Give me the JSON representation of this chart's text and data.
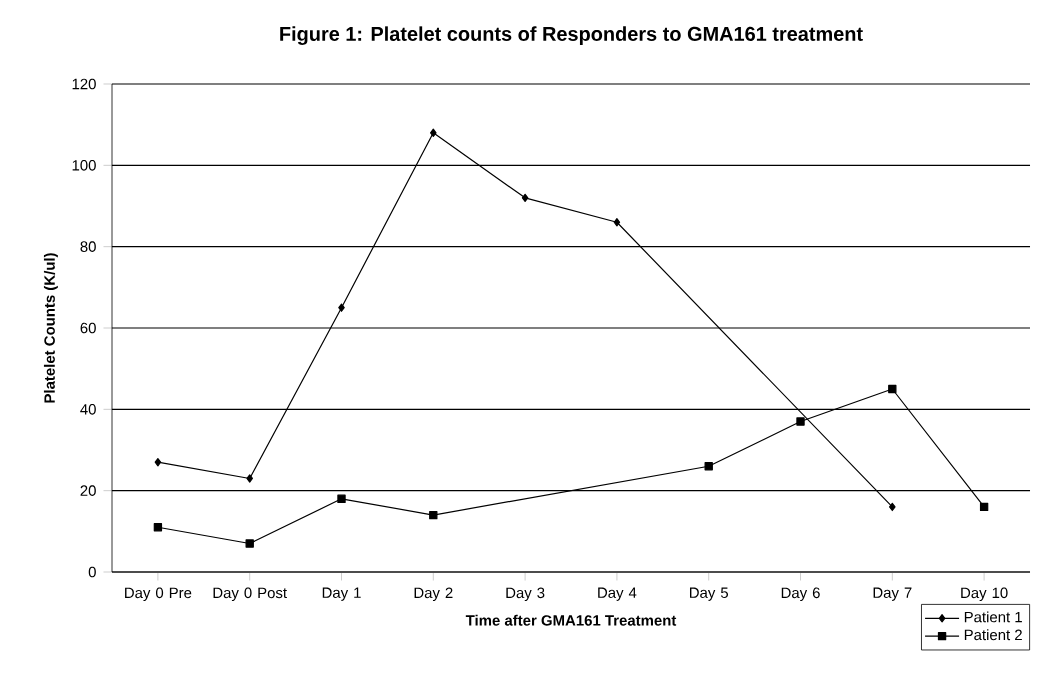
{
  "chart_data": {
    "type": "line",
    "title": "Figure 1: Platelet counts of Responders to GMA161 treatment",
    "xlabel": "Time after GMA161 Treatment",
    "ylabel": "Platelet Counts (K/ul)",
    "categories": [
      "Day 0 Pre",
      "Day 0 Post",
      "Day 1",
      "Day 2",
      "Day 3",
      "Day 4",
      "Day 5",
      "Day 6",
      "Day 7",
      "Day 10"
    ],
    "series": [
      {
        "name": "Patient 1",
        "color": "#000000",
        "marker": "diamond",
        "values": [
          27,
          23,
          65,
          108,
          92,
          86,
          null,
          null,
          16,
          null
        ]
      },
      {
        "name": "Patient 2",
        "color": "#000000",
        "marker": "square",
        "values": [
          11,
          7,
          18,
          14,
          null,
          null,
          26,
          37,
          45,
          16
        ]
      }
    ],
    "ylim": [
      0,
      120
    ],
    "yticks": [
      0,
      20,
      40,
      60,
      80,
      100,
      120
    ],
    "grid": "y",
    "legend": "bottom right"
  }
}
